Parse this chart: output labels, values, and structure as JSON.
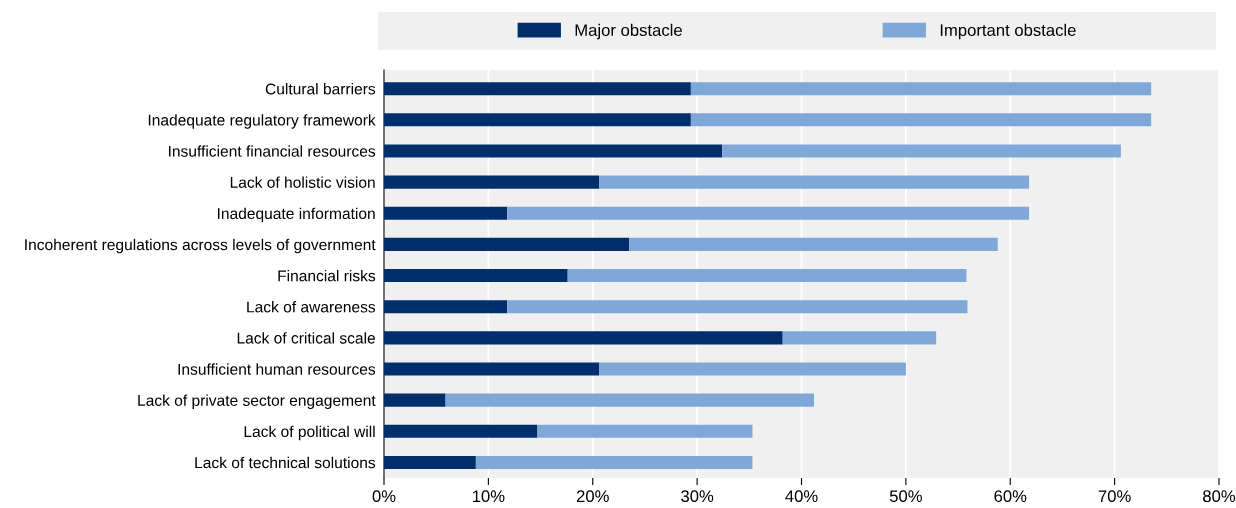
{
  "chart_data": {
    "type": "bar",
    "orientation": "horizontal",
    "stacked": true,
    "categories": [
      "Cultural barriers",
      "Inadequate regulatory framework",
      "Insufficient financial resources",
      "Lack of holistic vision",
      "Inadequate information",
      "Incoherent regulations across levels of government",
      "Financial risks",
      "Lack of awareness",
      "Lack of critical scale",
      "Insufficient human resources",
      "Lack of private sector engagement",
      "Lack of political will",
      "Lack of technical solutions"
    ],
    "series": [
      {
        "name": "Major obstacle",
        "color": "#002f6c",
        "values": [
          29.4,
          29.4,
          32.4,
          20.6,
          11.8,
          23.5,
          17.6,
          11.8,
          38.2,
          20.6,
          5.9,
          14.7,
          8.8
        ]
      },
      {
        "name": "Important obstacle",
        "color": "#7fa8d9",
        "values": [
          44.1,
          44.1,
          38.2,
          41.2,
          50.0,
          35.3,
          38.2,
          44.1,
          14.7,
          29.4,
          35.3,
          20.6,
          26.5
        ]
      }
    ],
    "xlim": [
      0,
      80
    ],
    "xticks": [
      {
        "value": 0,
        "label": "0%"
      },
      {
        "value": 10,
        "label": "10%"
      },
      {
        "value": 20,
        "label": "20%"
      },
      {
        "value": 30,
        "label": "30%"
      },
      {
        "value": 40,
        "label": "40%"
      },
      {
        "value": 50,
        "label": "50%"
      },
      {
        "value": 60,
        "label": "60%"
      },
      {
        "value": 70,
        "label": "70%"
      },
      {
        "value": 80,
        "label": "80%"
      }
    ],
    "grid": "x",
    "legend": "top"
  }
}
